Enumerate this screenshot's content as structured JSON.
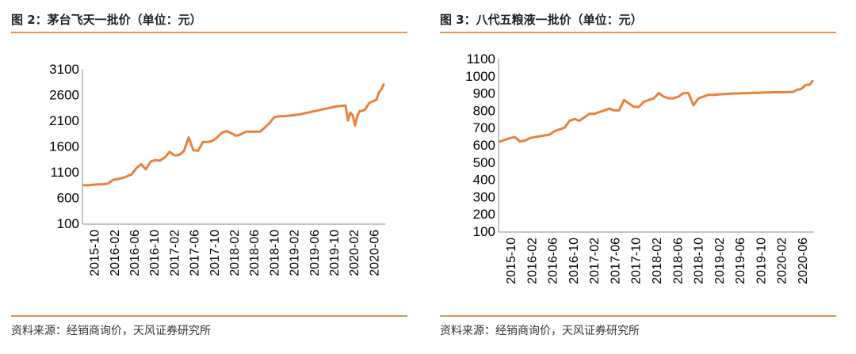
{
  "colors": {
    "line": "#e8823d",
    "rule": "#e8944e",
    "axis": "#888888"
  },
  "panels": [
    {
      "title": "图 2：茅台飞天一批价（单位：元）",
      "source": "资料来源：经销商询价，天风证券研究所",
      "chart_data": {
        "type": "line",
        "title": "图 2：茅台飞天一批价（单位：元）",
        "xlabel": "",
        "ylabel": "",
        "ylim": [
          100,
          3100
        ],
        "yticks": [
          100,
          600,
          1100,
          1600,
          2100,
          2600,
          3100
        ],
        "xtick_labels": [
          "2015-10",
          "2016-02",
          "2016-06",
          "2016-10",
          "2017-02",
          "2017-06",
          "2017-10",
          "2018-02",
          "2018-06",
          "2018-10",
          "2019-02",
          "2019-06",
          "2019-10",
          "2020-02",
          "2020-06"
        ],
        "grid": false,
        "legend": "none",
        "series": [
          {
            "x": [
              0,
              1,
              2,
              3,
              4,
              5,
              6,
              7,
              8,
              9,
              10,
              11,
              12,
              13,
              14,
              15,
              16,
              17,
              18,
              19,
              20,
              21,
              22,
              23,
              24,
              25,
              26,
              27,
              28,
              29,
              30,
              31,
              32,
              33,
              34,
              35,
              36,
              37,
              38,
              39,
              40,
              41,
              42,
              43,
              44,
              45,
              46,
              47,
              48,
              49,
              50,
              51,
              52,
              53,
              54,
              55,
              55.5,
              56,
              56.5,
              57,
              57.5,
              58,
              59,
              60,
              61,
              61.5,
              62,
              62.5,
              63
            ],
            "values": [
              840,
              840,
              850,
              860,
              860,
              870,
              940,
              960,
              980,
              1010,
              1050,
              1170,
              1250,
              1150,
              1300,
              1330,
              1320,
              1380,
              1490,
              1420,
              1430,
              1500,
              1770,
              1520,
              1510,
              1680,
              1680,
              1700,
              1770,
              1860,
              1890,
              1850,
              1800,
              1830,
              1880,
              1880,
              1880,
              1880,
              1960,
              2050,
              2160,
              2180,
              2180,
              2190,
              2200,
              2210,
              2230,
              2250,
              2270,
              2290,
              2310,
              2330,
              2350,
              2370,
              2380,
              2390,
              2100,
              2250,
              2200,
              2000,
              2200,
              2280,
              2300,
              2440,
              2480,
              2500,
              2640,
              2700,
              2800
            ]
          }
        ]
      }
    },
    {
      "title": "图 3：八代五粮液一批价（单位：元）",
      "source": "资料来源：经销商询价，天风证券研究所",
      "chart_data": {
        "type": "line",
        "title": "图 3：八代五粮液一批价（单位：元）",
        "xlabel": "",
        "ylabel": "",
        "ylim": [
          100,
          1100
        ],
        "yticks": [
          100,
          200,
          300,
          400,
          500,
          600,
          700,
          800,
          900,
          1000,
          1100
        ],
        "xtick_labels": [
          "2015-10",
          "2016-02",
          "2016-06",
          "2016-10",
          "2017-02",
          "2017-06",
          "2017-10",
          "2018-02",
          "2018-06",
          "2018-10",
          "2019-02",
          "2019-06",
          "2019-10",
          "2020-02",
          "2020-06"
        ],
        "grid": false,
        "legend": "none",
        "series": [
          {
            "x": [
              0,
              1,
              2,
              3,
              4,
              5,
              6,
              7,
              8,
              9,
              10,
              11,
              12,
              13,
              14,
              15,
              16,
              17,
              18,
              19,
              20,
              21,
              22,
              23,
              24,
              25,
              26,
              27,
              28,
              29,
              30,
              31,
              32,
              33,
              34,
              35,
              36,
              37,
              38,
              39,
              40,
              41,
              42,
              43,
              44,
              45,
              46,
              47,
              48,
              49,
              50,
              51,
              52,
              53,
              54,
              55,
              56,
              57,
              58,
              59,
              60,
              60.5,
              61,
              61.5,
              62,
              62.5,
              63
            ],
            "values": [
              620,
              630,
              640,
              645,
              620,
              625,
              640,
              645,
              650,
              655,
              660,
              680,
              690,
              700,
              740,
              750,
              740,
              760,
              780,
              780,
              790,
              800,
              810,
              800,
              800,
              860,
              840,
              820,
              820,
              850,
              860,
              870,
              900,
              880,
              870,
              870,
              880,
              900,
              900,
              830,
              870,
              880,
              890,
              890,
              892,
              894,
              896,
              898,
              898,
              900,
              900,
              902,
              902,
              904,
              904,
              905,
              905,
              905,
              906,
              906,
              920,
              922,
              930,
              945,
              948,
              950,
              970
            ]
          }
        ]
      }
    }
  ]
}
